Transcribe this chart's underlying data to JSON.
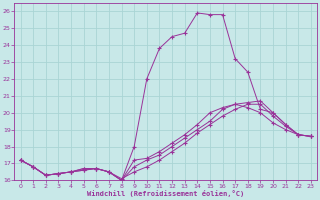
{
  "xlabel": "Windchill (Refroidissement éolien,°C)",
  "xlim": [
    -0.5,
    23.5
  ],
  "ylim": [
    16,
    26.5
  ],
  "yticks": [
    16,
    17,
    18,
    19,
    20,
    21,
    22,
    23,
    24,
    25,
    26
  ],
  "xticks": [
    0,
    1,
    2,
    3,
    4,
    5,
    6,
    7,
    8,
    9,
    10,
    11,
    12,
    13,
    14,
    15,
    16,
    17,
    18,
    19,
    20,
    21,
    22,
    23
  ],
  "background_color": "#c8e8e8",
  "grid_color": "#aad4d4",
  "line_color": "#993399",
  "line1": [
    17.2,
    16.8,
    16.3,
    16.4,
    16.5,
    16.6,
    16.7,
    16.5,
    16.0,
    17.2,
    17.3,
    17.7,
    18.2,
    18.7,
    19.3,
    20.0,
    20.3,
    20.5,
    20.6,
    20.7,
    20.0,
    19.3,
    18.7,
    18.6
  ],
  "line2": [
    17.2,
    16.8,
    16.3,
    16.4,
    16.5,
    16.6,
    16.7,
    16.5,
    16.0,
    16.8,
    17.2,
    17.5,
    18.0,
    18.5,
    19.0,
    19.5,
    20.2,
    20.5,
    20.3,
    20.0,
    19.4,
    19.0,
    18.7,
    18.6
  ],
  "line3": [
    17.2,
    16.8,
    16.3,
    16.4,
    16.5,
    16.7,
    16.7,
    16.5,
    16.0,
    18.0,
    22.0,
    23.8,
    24.5,
    24.7,
    25.9,
    25.8,
    25.8,
    23.2,
    22.4,
    20.2,
    20.0,
    19.3,
    18.7,
    18.6
  ],
  "line4": [
    17.2,
    16.8,
    16.3,
    16.4,
    16.5,
    16.7,
    16.7,
    16.5,
    16.1,
    16.5,
    16.8,
    17.2,
    17.7,
    18.2,
    18.8,
    19.3,
    19.8,
    20.2,
    20.5,
    20.5,
    19.8,
    19.2,
    18.7,
    18.6
  ]
}
